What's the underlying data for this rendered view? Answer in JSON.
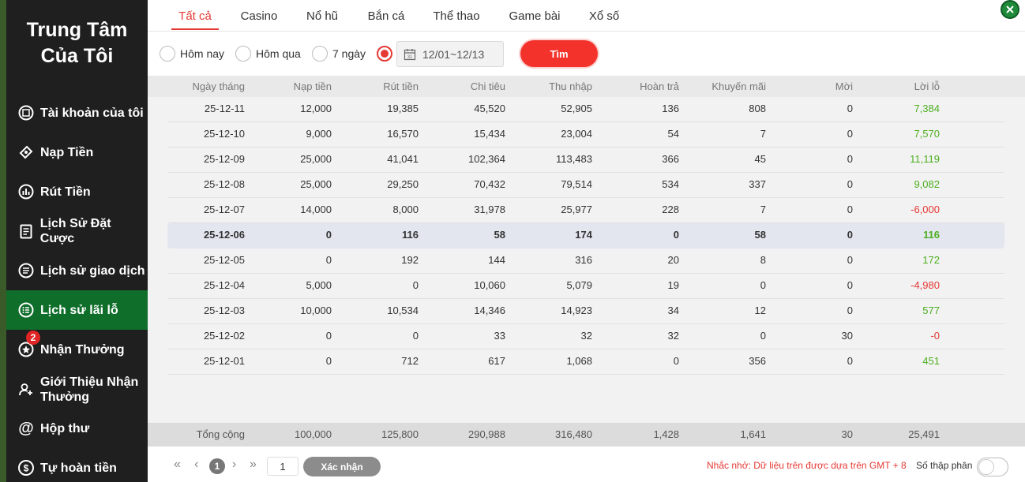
{
  "sidebar": {
    "title_line1": "Trung Tâm",
    "title_line2": "Của Tôi",
    "items": [
      {
        "label": "Tài khoản của tôi",
        "icon": "account-icon"
      },
      {
        "label": "Nạp Tiền",
        "icon": "deposit-icon"
      },
      {
        "label": "Rút Tiền",
        "icon": "withdraw-icon"
      },
      {
        "label": "Lịch Sử Đặt Cược",
        "icon": "bet-history-icon"
      },
      {
        "label": "Lịch sử giao dịch",
        "icon": "transaction-icon"
      },
      {
        "label": "Lịch sử lãi lỗ",
        "icon": "profit-loss-icon",
        "active": true
      },
      {
        "label": "Nhận Thưởng",
        "icon": "reward-icon",
        "badge": "2"
      },
      {
        "label": "Giới Thiệu Nhận",
        "label2": "Thưởng",
        "icon": "referral-icon"
      },
      {
        "label": "Hộp thư",
        "icon": "mail-icon"
      },
      {
        "label": "Tự hoàn tiền",
        "icon": "cashback-icon"
      }
    ]
  },
  "tabs": [
    "Tất cả",
    "Casino",
    "Nổ hũ",
    "Bắn cá",
    "Thể thao",
    "Game bài",
    "Xổ số"
  ],
  "filters": {
    "today": "Hôm nay",
    "yesterday": "Hôm qua",
    "seven_days": "7 ngày",
    "date_range": "12/01~12/13",
    "search": "Tìm"
  },
  "table": {
    "headers": [
      "Ngày tháng",
      "Nạp tiền",
      "Rút tiền",
      "Chi tiêu",
      "Thu nhập",
      "Hoàn trả",
      "Khuyến mãi",
      "Mời",
      "Lời lỗ"
    ],
    "rows": [
      [
        "25-12-11",
        "12,000",
        "19,385",
        "45,520",
        "52,905",
        "136",
        "808",
        "0",
        "7,384"
      ],
      [
        "25-12-10",
        "9,000",
        "16,570",
        "15,434",
        "23,004",
        "54",
        "7",
        "0",
        "7,570"
      ],
      [
        "25-12-09",
        "25,000",
        "41,041",
        "102,364",
        "113,483",
        "366",
        "45",
        "0",
        "11,119"
      ],
      [
        "25-12-08",
        "25,000",
        "29,250",
        "70,432",
        "79,514",
        "534",
        "337",
        "0",
        "9,082"
      ],
      [
        "25-12-07",
        "14,000",
        "8,000",
        "31,978",
        "25,977",
        "228",
        "7",
        "0",
        "-6,000"
      ],
      [
        "25-12-06",
        "0",
        "116",
        "58",
        "174",
        "0",
        "58",
        "0",
        "116"
      ],
      [
        "25-12-05",
        "0",
        "192",
        "144",
        "316",
        "20",
        "8",
        "0",
        "172"
      ],
      [
        "25-12-04",
        "5,000",
        "0",
        "10,060",
        "5,079",
        "19",
        "0",
        "0",
        "-4,980"
      ],
      [
        "25-12-03",
        "10,000",
        "10,534",
        "14,346",
        "14,923",
        "34",
        "12",
        "0",
        "577"
      ],
      [
        "25-12-02",
        "0",
        "0",
        "33",
        "32",
        "32",
        "0",
        "30",
        "-0"
      ],
      [
        "25-12-01",
        "0",
        "712",
        "617",
        "1,068",
        "0",
        "356",
        "0",
        "451"
      ]
    ],
    "highlighted_row": 5,
    "total": [
      "Tổng cộng",
      "100,000",
      "125,800",
      "290,988",
      "316,480",
      "1,428",
      "1,641",
      "30",
      "25,491"
    ]
  },
  "footer": {
    "page": "1",
    "page_input": "1",
    "confirm": "Xác nhận",
    "note": "Nhắc nhở: Dữ liệu trên được dựa trên GMT + 8",
    "decimal_label": "Số thập phân"
  },
  "colors": {
    "accent": "#e53935",
    "positive": "#4caf20",
    "negative": "#e53935",
    "sidebar_bg": "#1f1f1f",
    "sidebar_active": "#0f6e2a"
  }
}
